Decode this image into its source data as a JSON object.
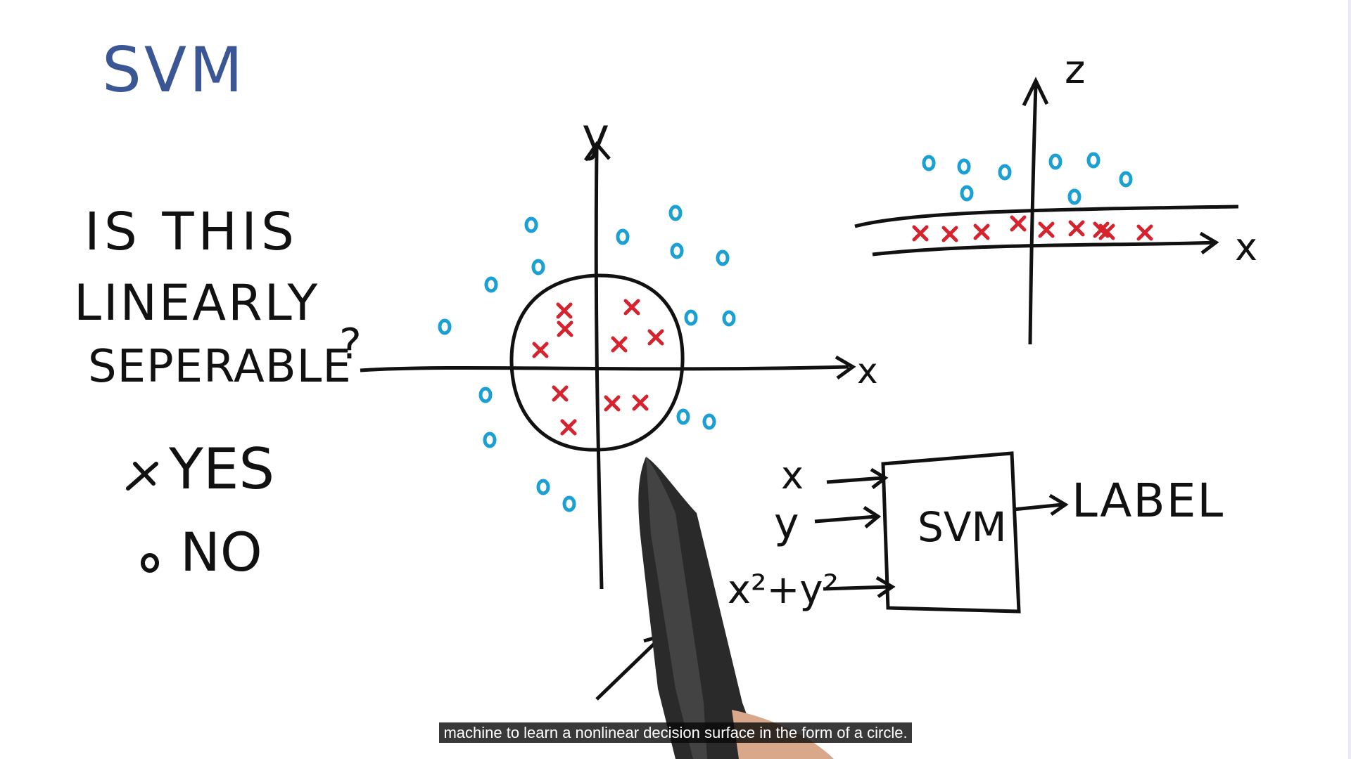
{
  "title": "SVM",
  "question": [
    "IS THIS",
    "LINEARLY",
    "SEPERABLE",
    "?"
  ],
  "legend": {
    "yes": "YES",
    "no": "NO"
  },
  "left_plot": {
    "x_label": "x",
    "y_label": "y"
  },
  "right_plot": {
    "x_label": "x",
    "z_label": "z"
  },
  "pipeline": {
    "inputs": [
      "x",
      "y",
      "z = x²+y²"
    ],
    "box_label": "SVM",
    "output_label": "LABEL"
  },
  "caption": "machine to learn a nonlinear decision surface in the form of a circle.",
  "colors": {
    "title": "#3a5694",
    "circle_class": "#1aa0d3",
    "cross_class": "#d7232e",
    "ink": "#111111"
  }
}
